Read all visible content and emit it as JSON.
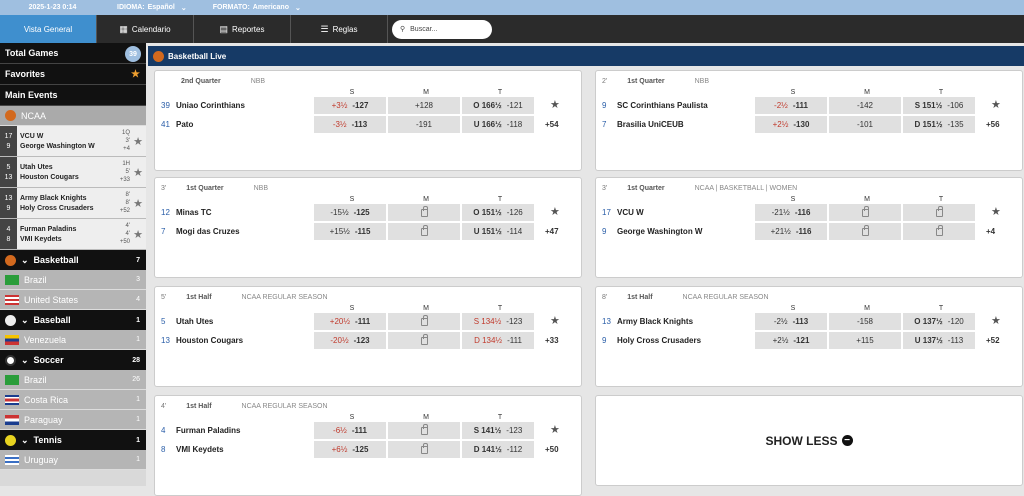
{
  "topbar": {
    "date": "2025-1-23 0:14",
    "lang_label": "IDIOMA:",
    "lang": "Español",
    "format_label": "FORMATO:",
    "format": "Americano"
  },
  "nav": {
    "tabs": [
      {
        "label": "Vista General"
      },
      {
        "label": "Calendario"
      },
      {
        "label": "Reportes"
      },
      {
        "label": "Reglas"
      }
    ],
    "search_placeholder": "Buscar..."
  },
  "sidebar": {
    "total_label": "Total Games",
    "total_count": "39",
    "favorites": "Favorites",
    "main_events": "Main Events",
    "ncaa": "NCAA",
    "mini": [
      {
        "s1": "17",
        "s2": "9",
        "t1": "VCU W",
        "t2": "George Washington W",
        "p": "1Q",
        "m": "3'",
        "more": "+4"
      },
      {
        "s1": "5",
        "s2": "13",
        "t1": "Utah Utes",
        "t2": "Houston Cougars",
        "p": "1H",
        "m": "5'",
        "more": "+33"
      },
      {
        "s1": "13",
        "s2": "9",
        "t1": "Army Black Knights",
        "t2": "Holy Cross Crusaders",
        "p": "8'",
        "m": "8'",
        "more": "+52"
      },
      {
        "s1": "4",
        "s2": "8",
        "t1": "Furman Paladins",
        "t2": "VMI Keydets",
        "p": "4'",
        "m": "4'",
        "more": "+50"
      }
    ],
    "basketball": {
      "label": "Basketball",
      "count": "7"
    },
    "brazil_b": {
      "label": "Brazil",
      "count": "3"
    },
    "us": {
      "label": "United States",
      "count": "4"
    },
    "baseball": {
      "label": "Baseball",
      "count": "1"
    },
    "venezuela": {
      "label": "Venezuela",
      "count": "1"
    },
    "soccer": {
      "label": "Soccer",
      "count": "28"
    },
    "brazil_s": {
      "label": "Brazil",
      "count": "26"
    },
    "costa": {
      "label": "Costa Rica",
      "count": "1"
    },
    "paraguay": {
      "label": "Paraguay",
      "count": "1"
    },
    "tennis": {
      "label": "Tennis",
      "count": "1"
    },
    "uruguay": {
      "label": "Uruguay",
      "count": "1"
    }
  },
  "main": {
    "title": "Basketball Live",
    "show_less": "SHOW LESS"
  },
  "hdr": {
    "s": "S",
    "m": "M",
    "t": "T"
  },
  "games": [
    {
      "min": "",
      "period": "2nd Quarter",
      "league": "NBB",
      "more": "+54",
      "t1": {
        "score": "39",
        "name": "Uniao Corinthians",
        "s_pre": "+3½",
        "s_odd": "-127",
        "m": "+128",
        "t_pre": "O 166½",
        "t_odd": "-121"
      },
      "t2": {
        "score": "41",
        "name": "Pato",
        "s_pre": "-3½",
        "s_odd": "-113",
        "m": "-191",
        "t_pre": "U 166½",
        "t_odd": "-118"
      }
    },
    {
      "min": "2'",
      "period": "1st Quarter",
      "league": "NBB",
      "more": "+56",
      "t1": {
        "score": "9",
        "name": "SC Corinthians Paulista",
        "s_pre": "-2½",
        "s_odd": "-111",
        "m": "-142",
        "t_pre": "S 151½",
        "t_odd": "-106"
      },
      "t2": {
        "score": "7",
        "name": "Brasilia UniCEUB",
        "s_pre": "+2½",
        "s_odd": "-130",
        "m": "-101",
        "t_pre": "D 151½",
        "t_odd": "-135"
      }
    },
    {
      "min": "3'",
      "period": "1st Quarter",
      "league": "NBB",
      "more": "+47",
      "t1": {
        "score": "12",
        "name": "Minas TC",
        "s_pre": "-15½",
        "s_odd": "-125",
        "m": "",
        "t_pre": "O 151½",
        "t_odd": "-126"
      },
      "t2": {
        "score": "7",
        "name": "Mogi das Cruzes",
        "s_pre": "+15½",
        "s_odd": "-115",
        "m": "",
        "t_pre": "U 151½",
        "t_odd": "-114"
      }
    },
    {
      "min": "3'",
      "period": "1st Quarter",
      "league": "NCAA | BASKETBALL | WOMEN",
      "more": "+4",
      "t1": {
        "score": "17",
        "name": "VCU W",
        "s_pre": "-21½",
        "s_odd": "-116",
        "m": "",
        "t_pre": "",
        "t_odd": ""
      },
      "t2": {
        "score": "9",
        "name": "George Washington W",
        "s_pre": "+21½",
        "s_odd": "-116",
        "m": "",
        "t_pre": "",
        "t_odd": ""
      }
    },
    {
      "min": "5'",
      "period": "1st Half",
      "league": "NCAA REGULAR SEASON",
      "more": "+33",
      "t1": {
        "score": "5",
        "name": "Utah Utes",
        "s_pre": "+20½",
        "s_odd": "-111",
        "m": "",
        "t_pre": "S 134½",
        "t_odd": "-123"
      },
      "t2": {
        "score": "13",
        "name": "Houston Cougars",
        "s_pre": "-20½",
        "s_odd": "-123",
        "m": "",
        "t_pre": "D 134½",
        "t_odd": "-111"
      }
    },
    {
      "min": "8'",
      "period": "1st Half",
      "league": "NCAA REGULAR SEASON",
      "more": "+52",
      "t1": {
        "score": "13",
        "name": "Army Black Knights",
        "s_pre": "-2½",
        "s_odd": "-113",
        "m": "-158",
        "t_pre": "O 137½",
        "t_odd": "-120"
      },
      "t2": {
        "score": "9",
        "name": "Holy Cross Crusaders",
        "s_pre": "+2½",
        "s_odd": "-121",
        "m": "+115",
        "t_pre": "U 137½",
        "t_odd": "-113"
      }
    },
    {
      "min": "4'",
      "period": "1st Half",
      "league": "NCAA REGULAR SEASON",
      "more": "+50",
      "t1": {
        "score": "4",
        "name": "Furman Paladins",
        "s_pre": "-6½",
        "s_odd": "-111",
        "m": "",
        "t_pre": "S 141½",
        "t_odd": "-123"
      },
      "t2": {
        "score": "8",
        "name": "VMI Keydets",
        "s_pre": "+6½",
        "s_odd": "-125",
        "m": "",
        "t_pre": "D 141½",
        "t_odd": "-112"
      }
    }
  ]
}
